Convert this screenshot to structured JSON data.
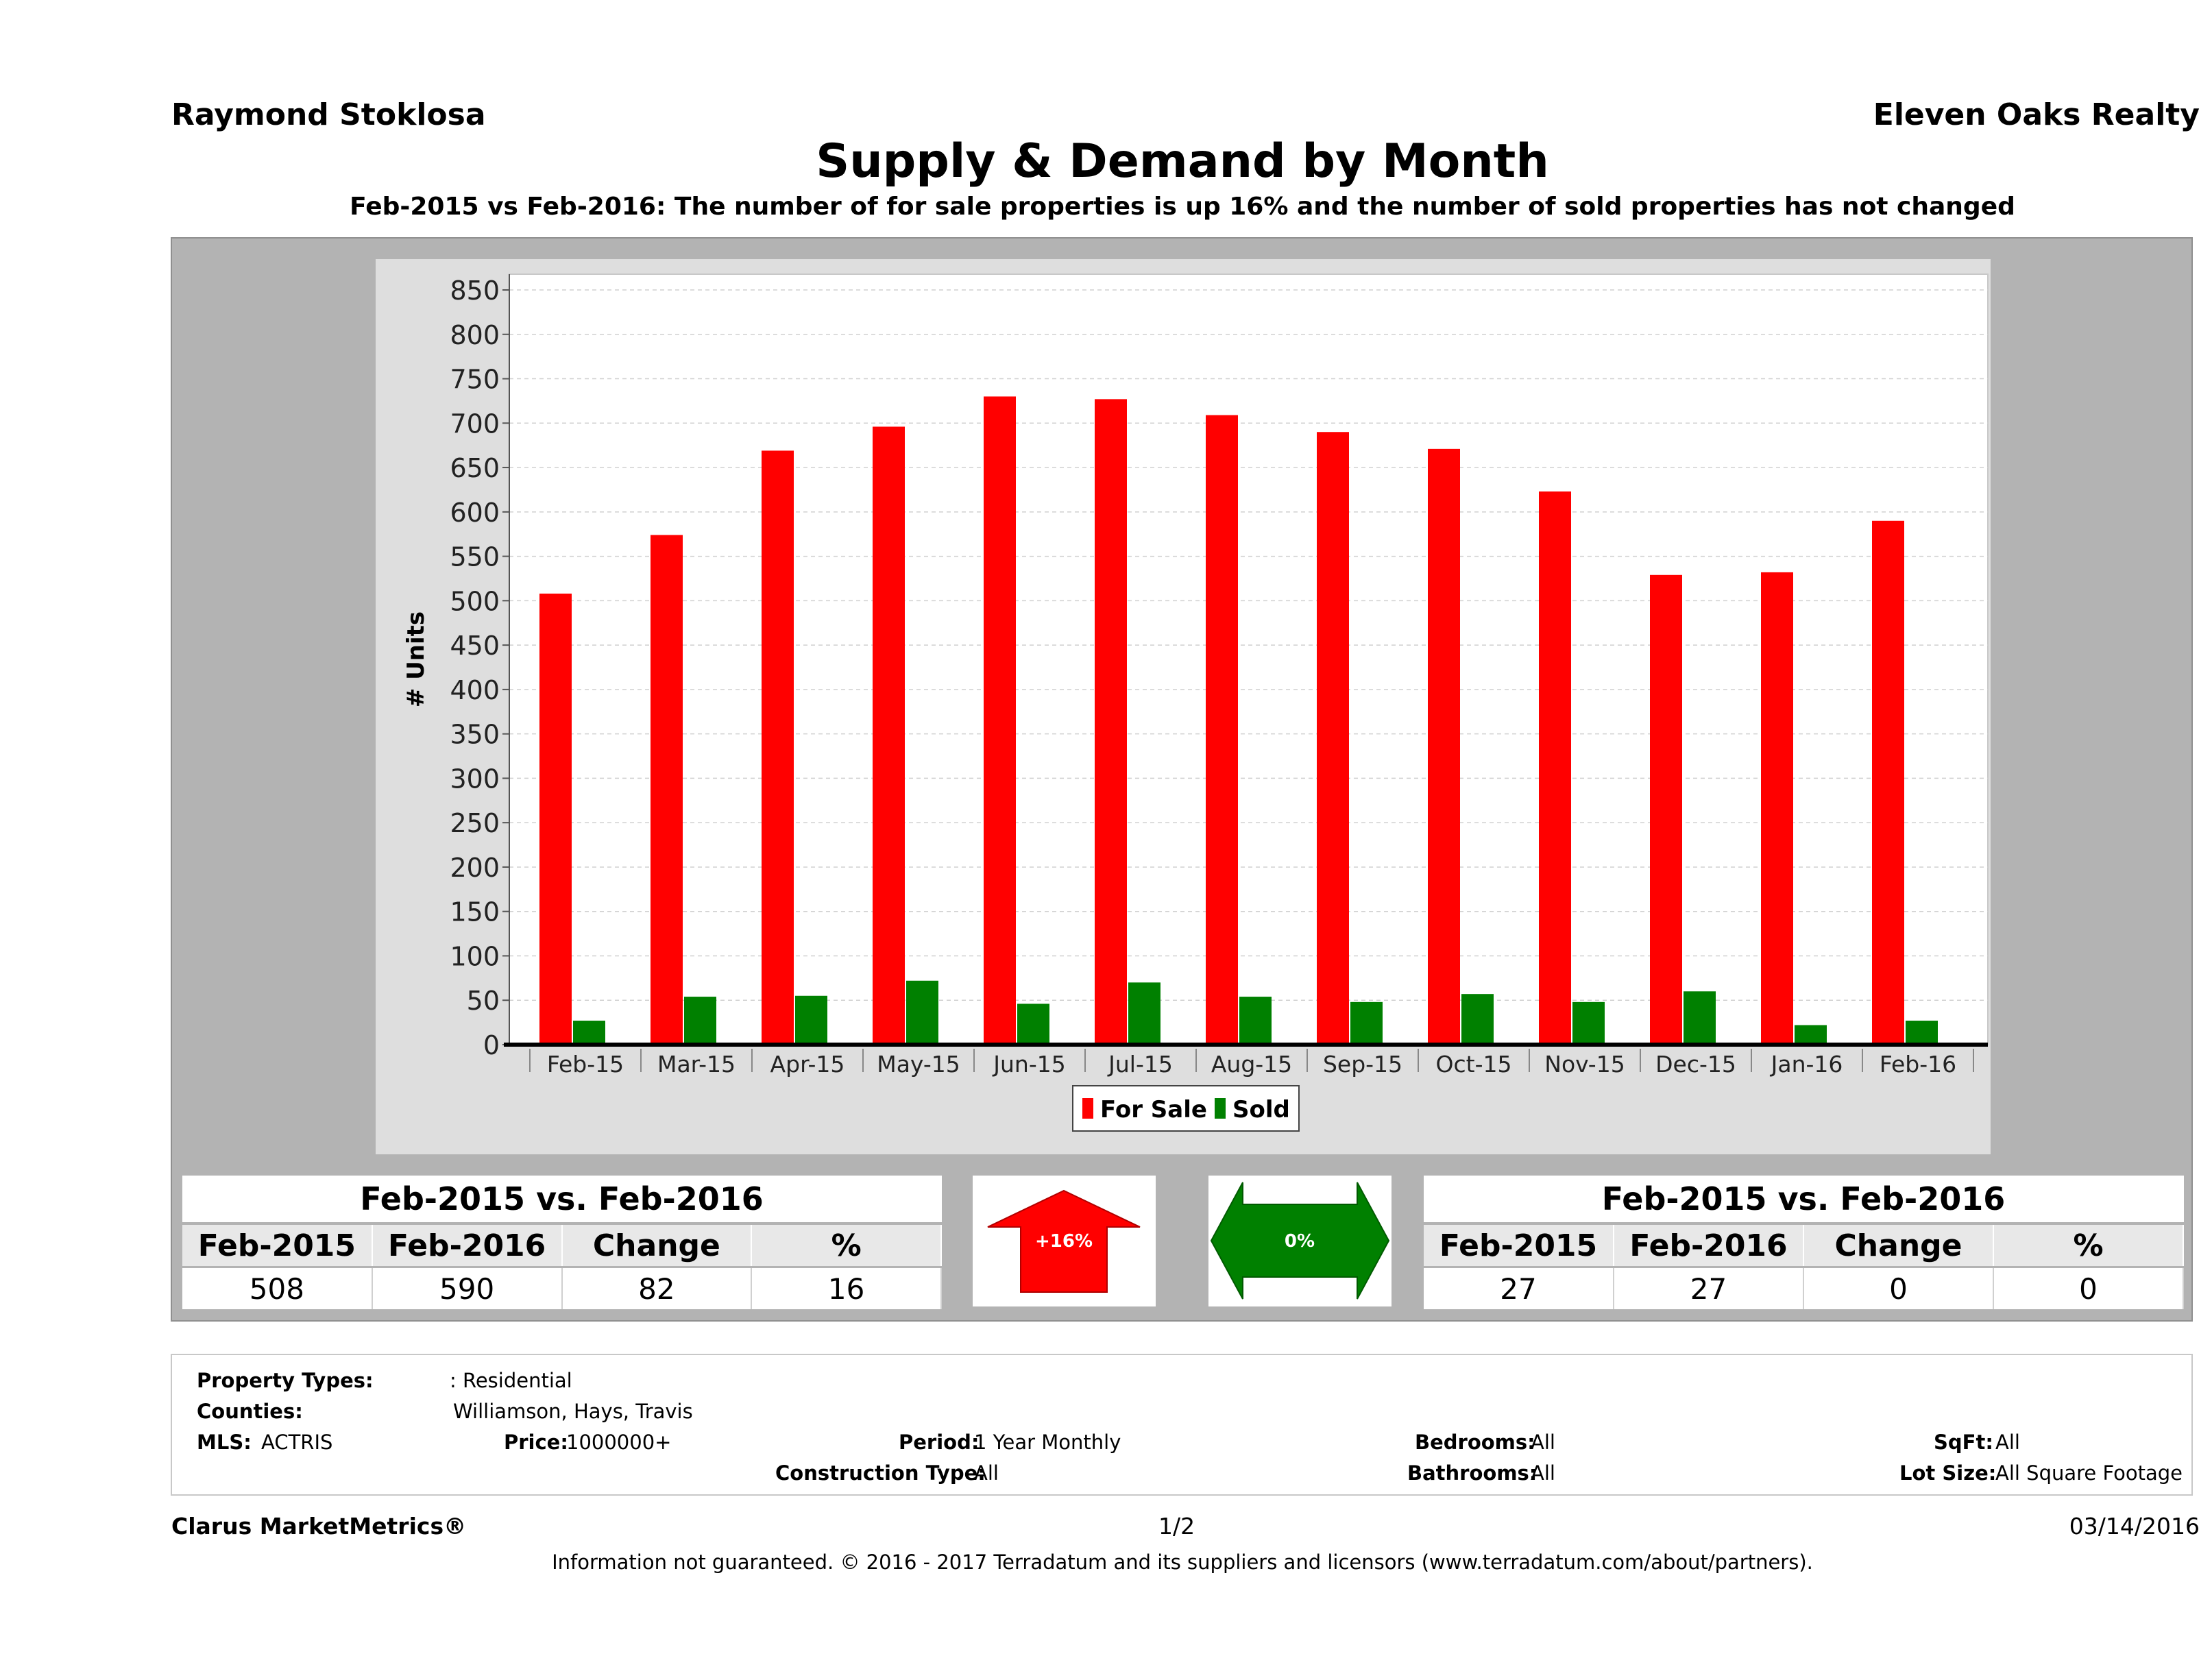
{
  "header": {
    "agent": "Raymond Stoklosa",
    "company": "Eleven Oaks Realty",
    "title": "Supply & Demand by Month",
    "subtitle": "Feb-2015 vs Feb-2016: The number of for sale properties is up 16% and the number of sold properties has not changed"
  },
  "chart_data": {
    "type": "bar",
    "title": "",
    "xlabel": "",
    "ylabel": "# Units",
    "categories": [
      "Feb-15",
      "Mar-15",
      "Apr-15",
      "May-15",
      "Jun-15",
      "Jul-15",
      "Aug-15",
      "Sep-15",
      "Oct-15",
      "Nov-15",
      "Dec-15",
      "Jan-16",
      "Feb-16"
    ],
    "series": [
      {
        "name": "For Sale",
        "color": "#ff0000",
        "values": [
          508,
          574,
          669,
          696,
          730,
          727,
          709,
          690,
          671,
          623,
          529,
          532,
          590
        ]
      },
      {
        "name": "Sold",
        "color": "#008000",
        "values": [
          27,
          54,
          55,
          72,
          46,
          70,
          54,
          48,
          57,
          48,
          60,
          22,
          27
        ]
      }
    ],
    "ylim": [
      0,
      850
    ],
    "yticks": [
      0,
      50,
      100,
      150,
      200,
      250,
      300,
      350,
      400,
      450,
      500,
      550,
      600,
      650,
      700,
      750,
      800,
      850
    ],
    "grid": true,
    "legend_position": "bottom-center"
  },
  "for_sale_summary": {
    "caption": "Feb-2015 vs. Feb-2016",
    "headers": [
      "Feb-2015",
      "Feb-2016",
      "Change",
      "%"
    ],
    "values": [
      "508",
      "590",
      "82",
      "16"
    ],
    "indicator": "+16%",
    "indicator_color": "#ff0000"
  },
  "sold_summary": {
    "caption": "Feb-2015 vs. Feb-2016",
    "headers": [
      "Feb-2015",
      "Feb-2016",
      "Change",
      "%"
    ],
    "values": [
      "27",
      "27",
      "0",
      "0"
    ],
    "indicator": "0%",
    "indicator_color": "#008000"
  },
  "criteria": {
    "property_types_label": "Property Types:",
    "property_types_value": ": Residential",
    "counties_label": "Counties:",
    "counties_value": "Williamson, Hays, Travis",
    "mls_label": "MLS:",
    "mls_value": "ACTRIS",
    "price_label": "Price:",
    "price_value": "1000000+",
    "period_label": "Period:",
    "period_value": "1 Year Monthly",
    "construction_label": "Construction Type:",
    "construction_value": "All",
    "bedrooms_label": "Bedrooms:",
    "bedrooms_value": "All",
    "bathrooms_label": "Bathrooms:",
    "bathrooms_value": "All",
    "sqft_label": "SqFt:",
    "sqft_value": "All",
    "lotsize_label": "Lot Size:",
    "lotsize_value": "All Square Footage"
  },
  "footer": {
    "brand": "Clarus MarketMetrics®",
    "page": "1/2",
    "date": "03/14/2016",
    "disclaimer": "Information not guaranteed. © 2016 - 2017 Terradatum and its suppliers and licensors (www.terradatum.com/about/partners)."
  }
}
